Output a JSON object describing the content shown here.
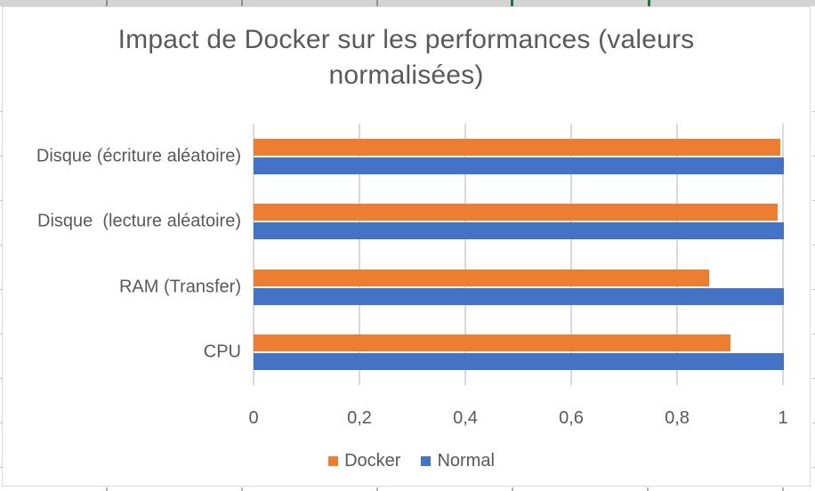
{
  "chart_data": {
    "type": "bar",
    "orientation": "horizontal",
    "title": "Impact de Docker sur les performances (valeurs normalisées)",
    "title_lines": [
      "Impact de Docker sur les performances (valeurs",
      "normalisées)"
    ],
    "categories": [
      "Disque (écriture aléatoire)",
      "Disque  (lecture aléatoire)",
      "RAM (Transfer)",
      "CPU"
    ],
    "categories_order_note": "listed top to bottom as displayed",
    "series": [
      {
        "name": "Docker",
        "color": "#ED7D31",
        "values": [
          0.995,
          0.99,
          0.86,
          0.9
        ]
      },
      {
        "name": "Normal",
        "color": "#4472C4",
        "values": [
          1.0,
          1.0,
          1.0,
          1.0
        ]
      }
    ],
    "xlabel": "",
    "ylabel": "",
    "x_axis": {
      "range": [
        0,
        1
      ],
      "tick_values": [
        0,
        0.2,
        0.4,
        0.6,
        0.8,
        1
      ],
      "tick_labels": [
        "0",
        "0,2",
        "0,4",
        "0,6",
        "0,8",
        "1"
      ]
    },
    "grid": true,
    "legend": {
      "position": "bottom",
      "entries": [
        "Docker",
        "Normal"
      ]
    },
    "colors": {
      "grid": "#D9D9D9",
      "text": "#595959",
      "chart_border": "#D9D9D9",
      "docker": "#ED7D31",
      "normal": "#4472C4"
    }
  }
}
